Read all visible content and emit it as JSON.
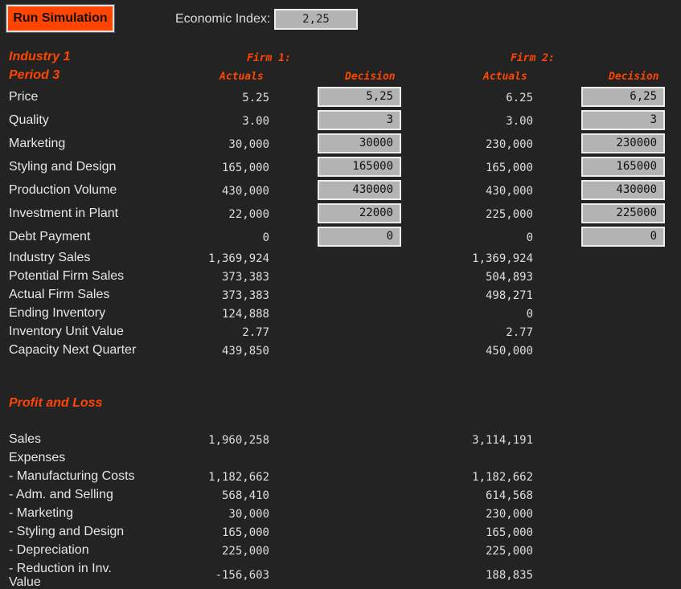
{
  "toolbar": {
    "run_label": "Run Simulation",
    "economic_index_label": "Economic Index:",
    "economic_index_value": "2,25"
  },
  "header": {
    "industry": "Industry 1",
    "period": "Period 3",
    "firm1": "Firm 1:",
    "firm2": "Firm 2:",
    "actuals": "Actuals",
    "decision": "Decision"
  },
  "decision_rows": [
    {
      "label": "Price",
      "f1_actual": "5.25",
      "f1_decision": "5,25",
      "f2_actual": "6.25",
      "f2_decision": "6,25"
    },
    {
      "label": "Quality",
      "f1_actual": "3.00",
      "f1_decision": "3",
      "f2_actual": "3.00",
      "f2_decision": "3"
    },
    {
      "label": "Marketing",
      "f1_actual": "30,000",
      "f1_decision": "30000",
      "f2_actual": "230,000",
      "f2_decision": "230000"
    },
    {
      "label": "Styling and Design",
      "f1_actual": "165,000",
      "f1_decision": "165000",
      "f2_actual": "165,000",
      "f2_decision": "165000"
    },
    {
      "label": "Production Volume",
      "f1_actual": "430,000",
      "f1_decision": "430000",
      "f2_actual": "430,000",
      "f2_decision": "430000"
    },
    {
      "label": "Investment in Plant",
      "f1_actual": "22,000",
      "f1_decision": "22000",
      "f2_actual": "225,000",
      "f2_decision": "225000"
    },
    {
      "label": "Debt Payment",
      "f1_actual": "0",
      "f1_decision": "0",
      "f2_actual": "0",
      "f2_decision": "0"
    }
  ],
  "info_rows": [
    {
      "label": "Industry Sales",
      "f1": "1,369,924",
      "f2": "1,369,924"
    },
    {
      "label": "Potential Firm Sales",
      "f1": "373,383",
      "f2": "504,893"
    },
    {
      "label": "Actual Firm Sales",
      "f1": "373,383",
      "f2": "498,271"
    },
    {
      "label": "Ending Inventory",
      "f1": "124,888",
      "f2": "0"
    },
    {
      "label": "Inventory Unit Value",
      "f1": "2.77",
      "f2": "2.77"
    },
    {
      "label": "Capacity Next Quarter",
      "f1": "439,850",
      "f2": "450,000"
    }
  ],
  "pnl": {
    "title": "Profit and Loss",
    "sales": {
      "label": "Sales",
      "f1": "1,960,258",
      "f2": "3,114,191"
    },
    "expenses_label": "Expenses",
    "expense_rows": [
      {
        "label": "- Manufacturing Costs",
        "f1": "1,182,662",
        "f2": "1,182,662"
      },
      {
        "label": "- Adm. and Selling",
        "f1": "568,410",
        "f2": "614,568"
      },
      {
        "label": "- Marketing",
        "f1": "30,000",
        "f2": "230,000"
      },
      {
        "label": "- Styling and Design",
        "f1": "165,000",
        "f2": "165,000"
      },
      {
        "label": "- Depreciation",
        "f1": "225,000",
        "f2": "225,000"
      },
      {
        "label": "- Reduction in Inv. Value",
        "f1": "-156,603",
        "f2": "188,835"
      }
    ]
  }
}
